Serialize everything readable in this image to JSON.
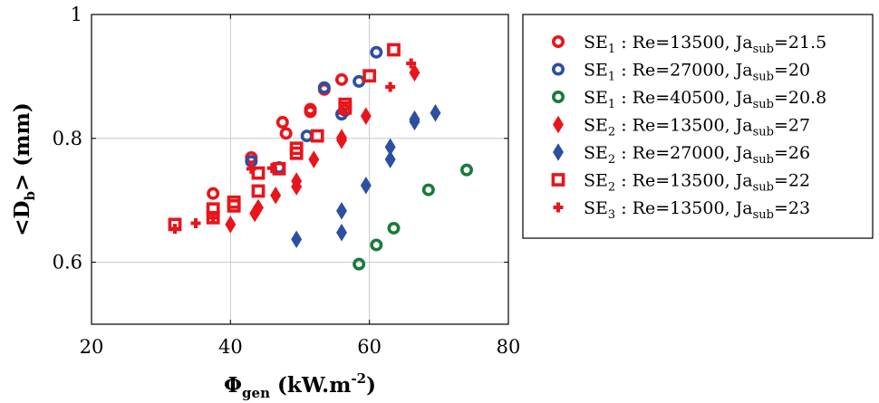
{
  "chart_data": {
    "type": "scatter",
    "title": "",
    "xlabel": {
      "base": "Φ",
      "sub": "gen",
      "rest": "(kW.m",
      "sup": "-2",
      "close": ")"
    },
    "ylabel": {
      "open": "<D",
      "sub": "b",
      "close": "> (mm)"
    },
    "xlim": [
      20,
      80
    ],
    "ylim": [
      0.5,
      1.0
    ],
    "xticks": [
      20,
      40,
      60,
      80
    ],
    "yticks": [
      0.6,
      0.8,
      1.0
    ],
    "xtick_labels": [
      "20",
      "40",
      "60",
      "80"
    ],
    "ytick_labels": [
      "0.6",
      "0.8",
      "1"
    ],
    "grid": true,
    "legend_position": "right",
    "series": [
      {
        "prefix": "SE",
        "idx": "1",
        "re": "13500",
        "ja": "21.5",
        "marker": "ring",
        "color": "#e8151b",
        "points": [
          [
            37.5,
            0.711
          ],
          [
            43.0,
            0.769
          ],
          [
            47.5,
            0.826
          ],
          [
            48.0,
            0.808
          ],
          [
            51.5,
            0.843
          ],
          [
            51.5,
            0.847
          ],
          [
            53.5,
            0.879
          ],
          [
            56.0,
            0.895
          ],
          [
            56.5,
            0.845
          ]
        ]
      },
      {
        "prefix": "SE",
        "idx": "1",
        "re": "27000",
        "ja": "20",
        "marker": "ring",
        "color": "#2d4fa1",
        "points": [
          [
            43.0,
            0.763
          ],
          [
            47.0,
            0.753
          ],
          [
            51.0,
            0.804
          ],
          [
            53.5,
            0.882
          ],
          [
            56.0,
            0.839
          ],
          [
            58.5,
            0.892
          ],
          [
            61.0,
            0.939
          ]
        ]
      },
      {
        "prefix": "SE",
        "idx": "1",
        "re": "40500",
        "ja": "20.8",
        "marker": "ring",
        "color": "#1a7a3a",
        "points": [
          [
            58.5,
            0.597
          ],
          [
            61.0,
            0.628
          ],
          [
            63.5,
            0.655
          ],
          [
            68.5,
            0.717
          ],
          [
            74.0,
            0.749
          ]
        ]
      },
      {
        "prefix": "SE",
        "idx": "2",
        "re": "13500",
        "ja": "27",
        "marker": "diamond",
        "color": "#e8151b",
        "points": [
          [
            40.0,
            0.661
          ],
          [
            43.5,
            0.679
          ],
          [
            44.0,
            0.688
          ],
          [
            46.5,
            0.708
          ],
          [
            49.5,
            0.722
          ],
          [
            49.5,
            0.731
          ],
          [
            52.0,
            0.766
          ],
          [
            56.0,
            0.797
          ],
          [
            56.0,
            0.801
          ],
          [
            59.5,
            0.836
          ],
          [
            66.5,
            0.906
          ]
        ]
      },
      {
        "prefix": "SE",
        "idx": "2",
        "re": "27000",
        "ja": "26",
        "marker": "diamond",
        "color": "#2d4fa1",
        "points": [
          [
            49.5,
            0.637
          ],
          [
            56.0,
            0.648
          ],
          [
            56.0,
            0.683
          ],
          [
            59.5,
            0.724
          ],
          [
            63.0,
            0.766
          ],
          [
            63.0,
            0.786
          ],
          [
            66.5,
            0.827
          ],
          [
            66.5,
            0.831
          ],
          [
            69.5,
            0.841
          ]
        ]
      },
      {
        "prefix": "SE",
        "idx": "2",
        "re": "13500",
        "ja": "22",
        "marker": "square",
        "color": "#e8151b",
        "points": [
          [
            32.0,
            0.661
          ],
          [
            37.5,
            0.672
          ],
          [
            37.5,
            0.686
          ],
          [
            40.5,
            0.691
          ],
          [
            40.5,
            0.697
          ],
          [
            44.0,
            0.715
          ],
          [
            44.0,
            0.744
          ],
          [
            47.0,
            0.751
          ],
          [
            49.5,
            0.776
          ],
          [
            49.5,
            0.784
          ],
          [
            52.5,
            0.804
          ],
          [
            56.5,
            0.849
          ],
          [
            56.5,
            0.855
          ],
          [
            60.0,
            0.901
          ],
          [
            63.5,
            0.943
          ]
        ]
      },
      {
        "prefix": "SE",
        "idx": "3",
        "re": "13500",
        "ja": "23",
        "marker": "plus",
        "color": "#e8151b",
        "points": [
          [
            32.0,
            0.654
          ],
          [
            35.0,
            0.663
          ],
          [
            37.5,
            0.672
          ],
          [
            43.0,
            0.751
          ],
          [
            46.0,
            0.752
          ],
          [
            63.0,
            0.883
          ],
          [
            66.0,
            0.921
          ]
        ]
      }
    ],
    "legend_template": {
      "re_prefix": "Re=",
      "ja_prefix": "Ja",
      "ja_sub": "sub",
      "sep": " : "
    }
  }
}
